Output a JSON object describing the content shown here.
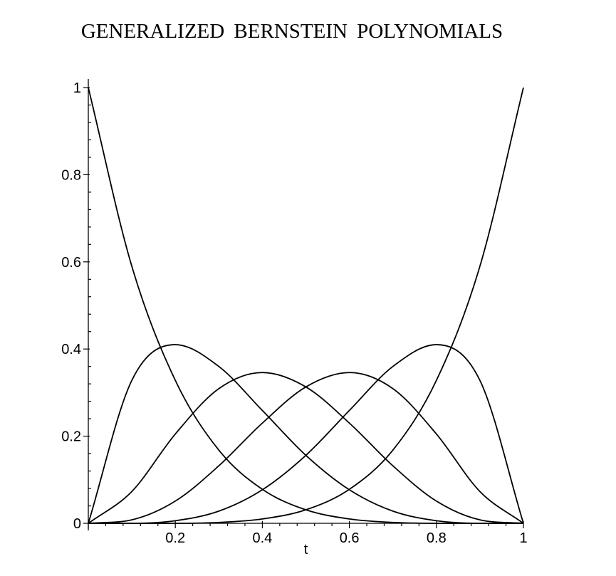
{
  "chart_data": {
    "type": "line",
    "title": "GENERALIZED BERNSTEIN POLYNOMIALS",
    "xlabel": "t",
    "ylabel": "",
    "xlim": [
      0,
      1
    ],
    "ylim": [
      0,
      1
    ],
    "x_ticks": [
      {
        "value": 0.2,
        "label": "0.2"
      },
      {
        "value": 0.4,
        "label": "0.4"
      },
      {
        "value": 0.6,
        "label": "0.6"
      },
      {
        "value": 0.8,
        "label": "0.8"
      },
      {
        "value": 1.0,
        "label": "1"
      }
    ],
    "y_ticks": [
      {
        "value": 0.0,
        "label": "0"
      },
      {
        "value": 0.2,
        "label": "0.2"
      },
      {
        "value": 0.4,
        "label": "0.4"
      },
      {
        "value": 0.6,
        "label": "0.6"
      },
      {
        "value": 0.8,
        "label": "0.8"
      },
      {
        "value": 1.0,
        "label": "1"
      }
    ],
    "grid": false,
    "line_color": "#000000",
    "x": [
      0,
      0.1,
      0.2,
      0.3,
      0.4,
      0.5,
      0.6,
      0.7,
      0.8,
      0.9,
      1.0
    ],
    "series": [
      {
        "values": [
          1.0,
          0.59,
          0.328,
          0.168,
          0.078,
          0.031,
          0.01,
          0.002,
          0.0,
          0.0,
          0.0
        ]
      },
      {
        "values": [
          0.0,
          0.328,
          0.41,
          0.36,
          0.259,
          0.156,
          0.077,
          0.028,
          0.006,
          0.0,
          0.0
        ]
      },
      {
        "values": [
          0.0,
          0.073,
          0.205,
          0.309,
          0.346,
          0.313,
          0.23,
          0.132,
          0.051,
          0.008,
          0.0
        ]
      },
      {
        "values": [
          0.0,
          0.008,
          0.051,
          0.132,
          0.23,
          0.313,
          0.346,
          0.309,
          0.205,
          0.073,
          0.0
        ]
      },
      {
        "values": [
          0.0,
          0.0,
          0.006,
          0.028,
          0.077,
          0.156,
          0.259,
          0.36,
          0.41,
          0.328,
          0.0
        ]
      },
      {
        "values": [
          0.0,
          0.0,
          0.0,
          0.002,
          0.01,
          0.031,
          0.078,
          0.168,
          0.328,
          0.59,
          1.0
        ]
      }
    ]
  }
}
